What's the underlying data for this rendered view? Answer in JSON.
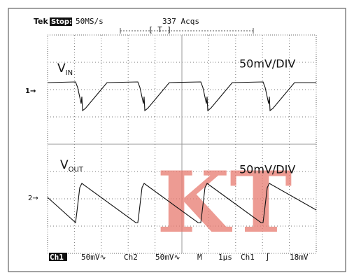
{
  "header": {
    "brand": "Tek",
    "state": "Stop:",
    "rate": "50MS/s",
    "acqs": "337 Acqs",
    "trigger_bracket": "[ T ]"
  },
  "traces": [
    {
      "marker": "1→",
      "label_main": "V",
      "label_sub": "IN",
      "scale": "50mV/DIV"
    },
    {
      "marker": "2→",
      "label_main": "V",
      "label_sub": "OUT",
      "scale": "50mV/DIV"
    }
  ],
  "footer": [
    "Ch1",
    "50mV∿",
    "Ch2",
    "50mV∿",
    "M",
    "1µs",
    "Ch1",
    "∫",
    "18mV"
  ],
  "watermark": "KT"
}
